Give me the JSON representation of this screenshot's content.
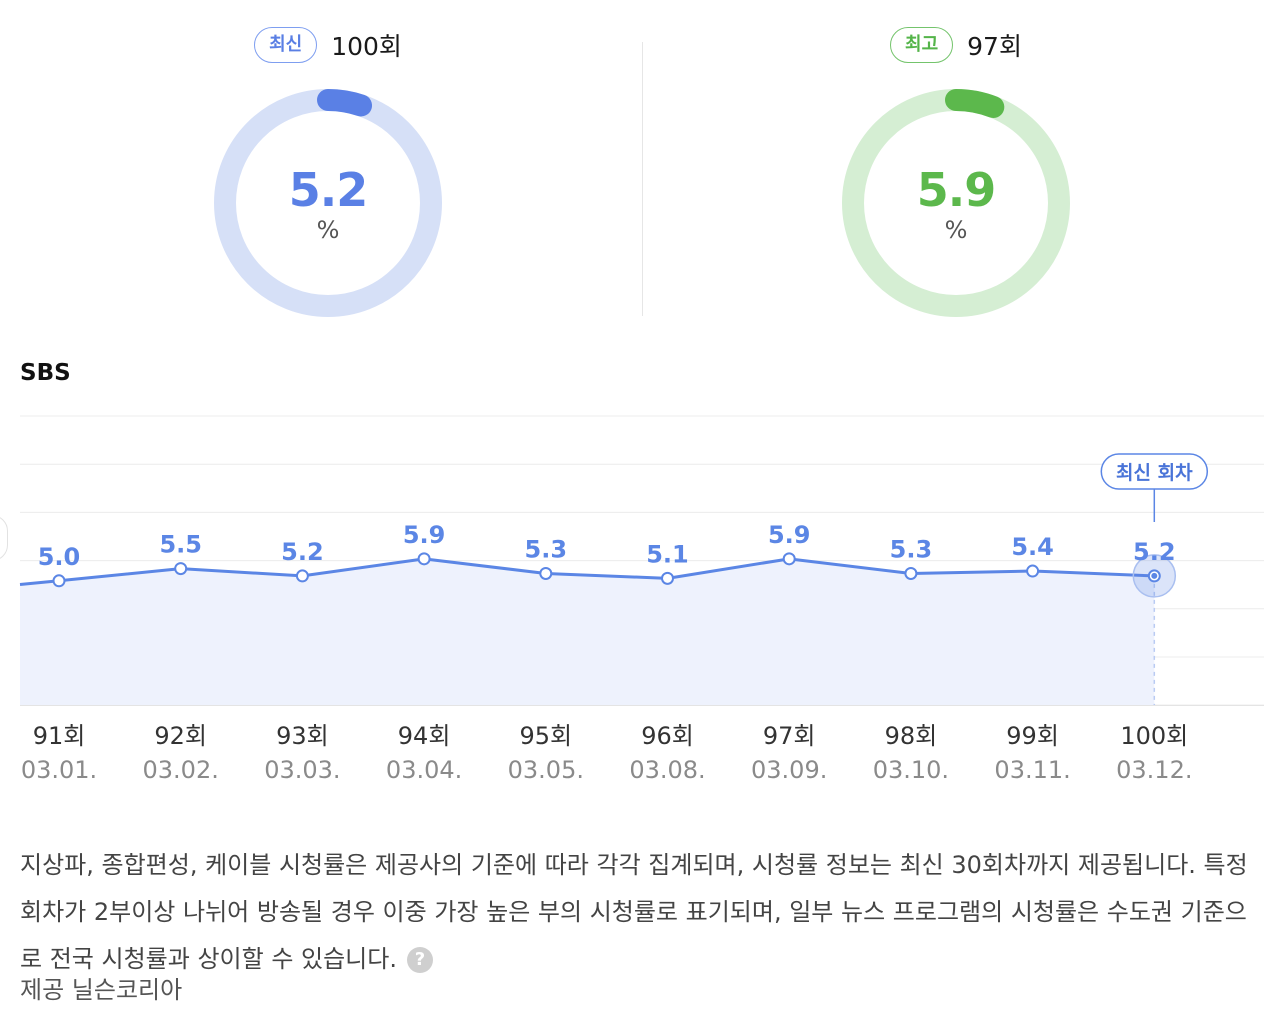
{
  "summary": {
    "latest": {
      "tag": "최신",
      "episode": "100회",
      "value": "5.2",
      "unit": "%",
      "fraction": 0.052,
      "color": "#5a80e5",
      "track": "#d6e0f7"
    },
    "highest": {
      "tag": "최고",
      "episode": "97회",
      "value": "5.9",
      "unit": "%",
      "fraction": 0.059,
      "color": "#5cb84c",
      "track": "#d5eed3"
    }
  },
  "chart_data": {
    "type": "line",
    "title": "SBS",
    "categories": [
      "91회",
      "92회",
      "93회",
      "94회",
      "95회",
      "96회",
      "97회",
      "98회",
      "99회",
      "100회"
    ],
    "dates": [
      "03.01.",
      "03.02.",
      "03.03.",
      "03.04.",
      "03.05.",
      "03.08.",
      "03.09.",
      "03.10.",
      "03.11.",
      "03.12."
    ],
    "series": [
      {
        "values": [
          5.0,
          5.5,
          5.2,
          5.9,
          5.3,
          5.1,
          5.9,
          5.3,
          5.4,
          5.2
        ],
        "labels": [
          "5.0",
          "5.5",
          "5.2",
          "5.9",
          "5.3",
          "5.1",
          "5.9",
          "5.3",
          "5.4",
          "5.2"
        ]
      }
    ],
    "highlight": {
      "index": 9,
      "label": "최신 회차"
    },
    "line_color": "#5b86e5",
    "area_color": "#eef2fd",
    "grid": true
  },
  "notes": {
    "text": "지상파, 종합편성, 케이블 시청률은 제공사의 기준에 따라 각각 집계되며, 시청률 정보는 최신 30회차까지 제공됩니다. 특정 회차가 2부이상 나뉘어 방송될 경우 이중 가장 높은 부의 시청률로 표기되며, 일부 뉴스 프로그램의 시청률은 수도권 기준으로 전국 시청률과 상이할 수 있습니다.",
    "help_icon": "?",
    "source": "제공 닐슨코리아"
  }
}
